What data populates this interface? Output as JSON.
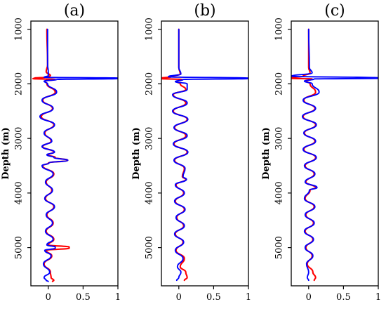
{
  "chart_data": [
    {
      "type": "line",
      "title": "(a)",
      "ylabel": "Depth (m)",
      "xlabel": "",
      "xlim": [
        -0.25,
        1.0
      ],
      "ylim": [
        5700,
        850
      ],
      "y_inverted": true,
      "xticks": [
        "0",
        "0.5",
        "1"
      ],
      "xtick_values": [
        0,
        0.5,
        1
      ],
      "yticks": [
        "1000",
        "2000",
        "3000",
        "4000",
        "5000"
      ],
      "ytick_values": [
        1000,
        2000,
        3000,
        4000,
        5000
      ],
      "grid": false,
      "legend": "none",
      "series": [
        {
          "color": "#ff0000",
          "depth": [
            1000,
            1650,
            1780,
            1850,
            1880,
            1895,
            1905,
            1920,
            1950,
            2000,
            2150,
            2300,
            2450,
            2600,
            2750,
            2900,
            3050,
            3150,
            3250,
            3300,
            3350,
            3400,
            3450,
            3500,
            3650,
            3800,
            3950,
            4100,
            4250,
            4400,
            4550,
            4700,
            4850,
            4950,
            4990,
            5010,
            5050,
            5150,
            5300,
            5450,
            5550,
            5600,
            5620
          ],
          "value": [
            -0.02,
            -0.01,
            -0.03,
            0.03,
            -0.05,
            -0.2,
            -0.22,
            0.1,
            -0.05,
            -0.02,
            0.1,
            -0.08,
            0.06,
            -0.1,
            0.08,
            -0.05,
            0.04,
            -0.08,
            0.08,
            0.0,
            0.1,
            0.28,
            0.0,
            -0.08,
            0.08,
            -0.03,
            0.05,
            -0.04,
            0.08,
            -0.02,
            0.07,
            -0.03,
            0.08,
            0.0,
            0.3,
            0.3,
            -0.03,
            0.05,
            -0.06,
            0.03,
            0.04,
            0.08,
            0.06
          ]
        },
        {
          "color": "#0000ff",
          "depth": [
            1000,
            1650,
            1780,
            1850,
            1880,
            1895,
            1905,
            1920,
            1950,
            2000,
            2150,
            2300,
            2450,
            2600,
            2750,
            2900,
            3050,
            3150,
            3250,
            3300,
            3350,
            3400,
            3450,
            3500,
            3650,
            3800,
            3950,
            4100,
            4250,
            4400,
            4550,
            4700,
            4850,
            4950,
            4990,
            5010,
            5050,
            5150,
            5300,
            5450,
            5550,
            5600,
            5620
          ],
          "value": [
            -0.01,
            -0.01,
            0.0,
            0.0,
            -0.06,
            1.0,
            1.0,
            0.12,
            -0.06,
            -0.01,
            0.12,
            -0.09,
            0.07,
            -0.12,
            0.09,
            -0.06,
            0.05,
            -0.09,
            0.09,
            -0.02,
            0.08,
            0.28,
            0.01,
            -0.09,
            0.07,
            -0.04,
            0.06,
            -0.05,
            0.09,
            -0.03,
            0.06,
            -0.04,
            0.07,
            -0.02,
            0.1,
            0.1,
            -0.05,
            0.04,
            -0.07,
            0.02,
            -0.06,
            -0.03,
            0.0
          ]
        }
      ]
    },
    {
      "type": "line",
      "title": "(b)",
      "ylabel": "Depth (m)",
      "xlabel": "",
      "xlim": [
        -0.25,
        1.0
      ],
      "ylim": [
        5700,
        850
      ],
      "y_inverted": true,
      "xticks": [
        "0",
        "0.5",
        "1"
      ],
      "xtick_values": [
        0,
        0.5,
        1
      ],
      "yticks": [
        "1000",
        "2000",
        "3000",
        "4000",
        "5000"
      ],
      "ytick_values": [
        1000,
        2000,
        3000,
        4000,
        5000
      ],
      "grid": false,
      "legend": "none",
      "series": [
        {
          "color": "#ff0000",
          "depth": [
            1000,
            1700,
            1820,
            1870,
            1895,
            1905,
            1920,
            1960,
            2000,
            2100,
            2200,
            2350,
            2500,
            2650,
            2800,
            2950,
            3100,
            3250,
            3400,
            3550,
            3700,
            3750,
            3850,
            4000,
            4150,
            4300,
            4450,
            4600,
            4750,
            4900,
            5050,
            5200,
            5350,
            5450,
            5550,
            5600
          ],
          "value": [
            0.0,
            0.0,
            0.02,
            -0.1,
            -0.25,
            -0.25,
            0.05,
            -0.03,
            0.02,
            0.1,
            -0.08,
            0.1,
            -0.08,
            0.12,
            -0.06,
            0.1,
            -0.07,
            0.12,
            -0.06,
            0.08,
            0.05,
            0.1,
            -0.04,
            0.07,
            -0.05,
            0.08,
            -0.03,
            0.07,
            -0.05,
            0.06,
            -0.04,
            0.08,
            0.02,
            0.1,
            0.12,
            0.08
          ]
        },
        {
          "color": "#0000ff",
          "depth": [
            1000,
            1700,
            1820,
            1870,
            1895,
            1905,
            1920,
            1960,
            2000,
            2100,
            2200,
            2350,
            2500,
            2650,
            2800,
            2950,
            3100,
            3250,
            3400,
            3550,
            3700,
            3750,
            3850,
            4000,
            4150,
            4300,
            4450,
            4600,
            4750,
            4900,
            5050,
            5200,
            5350,
            5450,
            5550,
            5600
          ],
          "value": [
            0.0,
            0.0,
            0.03,
            -0.15,
            1.0,
            1.0,
            0.06,
            -0.05,
            0.12,
            0.12,
            -0.09,
            0.12,
            -0.09,
            0.13,
            -0.07,
            0.12,
            -0.08,
            0.13,
            -0.07,
            0.09,
            0.06,
            0.11,
            -0.05,
            0.08,
            -0.06,
            0.09,
            -0.04,
            0.08,
            -0.06,
            0.07,
            -0.05,
            0.06,
            -0.02,
            0.03,
            0.0,
            -0.03
          ]
        }
      ]
    },
    {
      "type": "line",
      "title": "(c)",
      "ylabel": "Depth (m)",
      "xlabel": "",
      "xlim": [
        -0.25,
        1.0
      ],
      "ylim": [
        5700,
        850
      ],
      "y_inverted": true,
      "xticks": [
        "0",
        "0.5",
        "1"
      ],
      "xtick_values": [
        0,
        0.5,
        1
      ],
      "yticks": [
        "1000",
        "2000",
        "3000",
        "4000",
        "5000"
      ],
      "ytick_values": [
        1000,
        2000,
        3000,
        4000,
        5000
      ],
      "grid": false,
      "legend": "none",
      "series": [
        {
          "color": "#ff0000",
          "depth": [
            1000,
            1700,
            1800,
            1860,
            1890,
            1900,
            1910,
            1950,
            2000,
            2150,
            2300,
            2450,
            2600,
            2750,
            2900,
            3050,
            3200,
            3350,
            3500,
            3650,
            3800,
            3900,
            3950,
            4100,
            4250,
            4400,
            4550,
            4700,
            4850,
            5000,
            5150,
            5300,
            5450,
            5550,
            5600
          ],
          "value": [
            0.0,
            0.0,
            0.02,
            -0.08,
            -0.25,
            -0.25,
            0.05,
            -0.03,
            0.02,
            0.1,
            -0.07,
            0.09,
            -0.08,
            0.1,
            -0.06,
            0.09,
            -0.07,
            0.1,
            -0.05,
            0.08,
            -0.04,
            0.1,
            0.02,
            -0.05,
            0.08,
            -0.04,
            0.07,
            -0.05,
            0.06,
            -0.04,
            0.05,
            -0.02,
            0.06,
            0.1,
            0.08
          ]
        },
        {
          "color": "#0000ff",
          "depth": [
            1000,
            1700,
            1800,
            1860,
            1890,
            1900,
            1910,
            1950,
            2000,
            2150,
            2300,
            2450,
            2600,
            2750,
            2900,
            3050,
            3200,
            3350,
            3500,
            3650,
            3800,
            3900,
            3950,
            4100,
            4250,
            4400,
            4550,
            4700,
            4850,
            5000,
            5150,
            5300,
            5450,
            5550,
            5600
          ],
          "value": [
            0.0,
            0.01,
            0.05,
            -0.25,
            1.0,
            1.0,
            0.08,
            -0.06,
            0.05,
            0.15,
            -0.08,
            0.1,
            -0.09,
            0.11,
            -0.07,
            0.1,
            -0.08,
            0.11,
            -0.06,
            0.09,
            -0.05,
            0.12,
            0.01,
            -0.06,
            0.09,
            -0.05,
            0.08,
            -0.06,
            0.07,
            -0.05,
            0.06,
            -0.03,
            0.0,
            -0.02,
            0.0
          ]
        }
      ]
    }
  ]
}
